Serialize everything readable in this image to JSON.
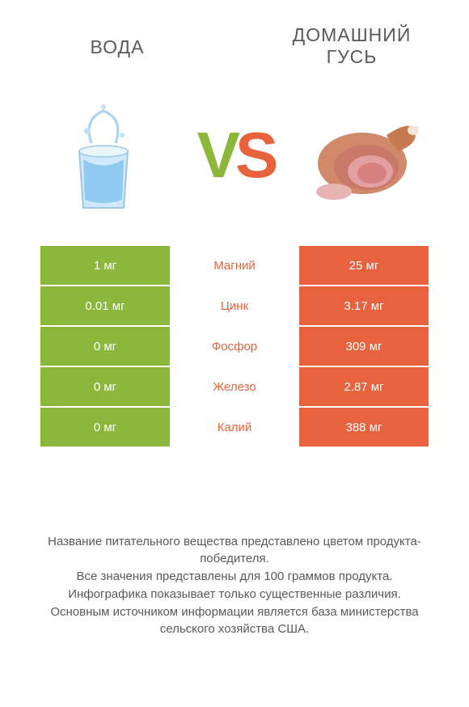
{
  "colors": {
    "left": "#8bb83b",
    "right": "#e8633d",
    "text": "#595959",
    "bg": "#ffffff",
    "white": "#ffffff"
  },
  "header": {
    "left_title": "ВОДА",
    "right_title": "ДОМАШНИЙ ГУСЬ"
  },
  "vs": {
    "v": "V",
    "s": "S"
  },
  "rows": [
    {
      "left": "1 мг",
      "label": "Магний",
      "right": "25 мг",
      "winner": "right"
    },
    {
      "left": "0.01 мг",
      "label": "Цинк",
      "right": "3.17 мг",
      "winner": "right"
    },
    {
      "left": "0 мг",
      "label": "Фосфор",
      "right": "309 мг",
      "winner": "right"
    },
    {
      "left": "0 мг",
      "label": "Железо",
      "right": "2.87 мг",
      "winner": "right"
    },
    {
      "left": "0 мг",
      "label": "Калий",
      "right": "388 мг",
      "winner": "right"
    }
  ],
  "footer": {
    "line1": "Название питательного вещества представлено цветом продукта-победителя.",
    "line2": "Все значения представлены для 100 граммов продукта.",
    "line3": "Инфографика показывает только существенные различия.",
    "line4": "Основным источником информации является база министерства сельского хозяйства США."
  }
}
